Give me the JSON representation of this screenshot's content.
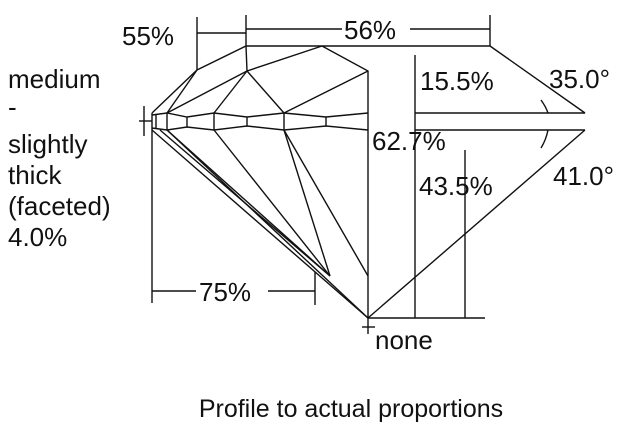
{
  "diagram": {
    "crown_angle_pct": "55%",
    "table_pct": "56%",
    "crown_height_pct": "15.5%",
    "crown_angle": "35.0°",
    "total_depth_pct": "62.7%",
    "pavilion_depth_pct": "43.5%",
    "pavilion_angle": "41.0°",
    "lower_half_pct": "75%",
    "culet": "none",
    "girdle_lines": [
      "medium",
      "-",
      "slightly",
      "thick",
      "(faceted)",
      "4.0%"
    ],
    "caption": "Profile to actual proportions"
  }
}
